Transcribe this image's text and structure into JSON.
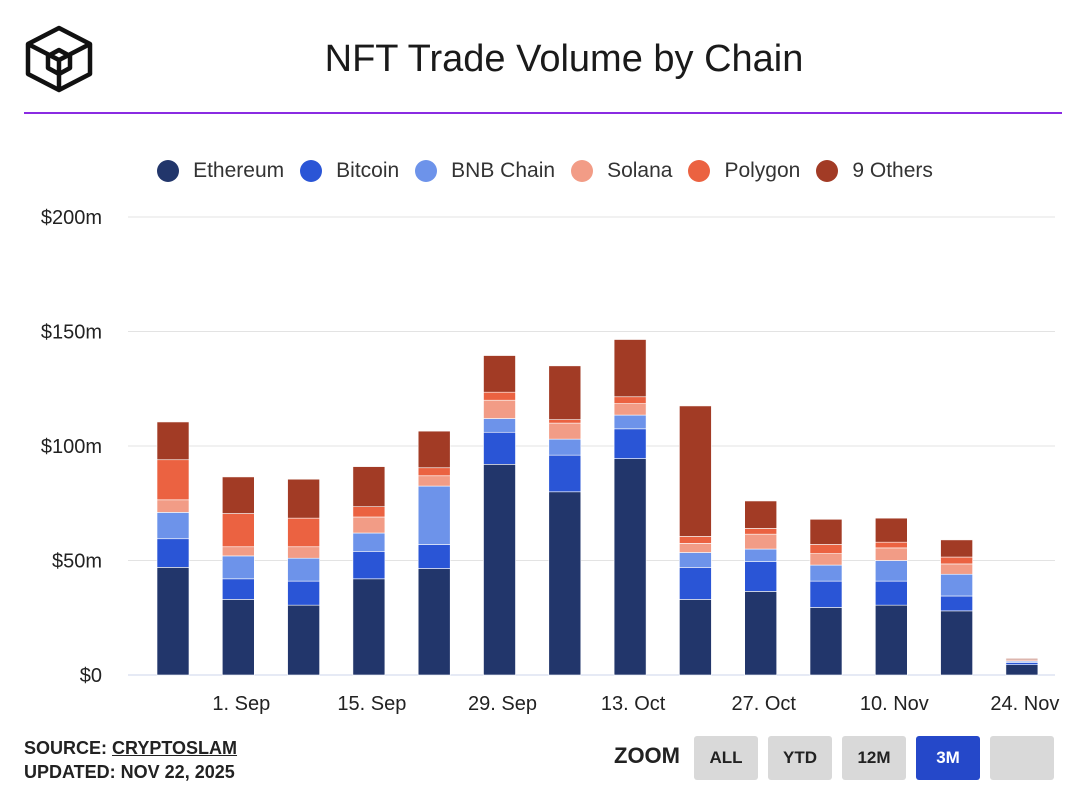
{
  "header": {
    "title": "NFT Trade Volume by Chain"
  },
  "chart_data": {
    "type": "bar",
    "stacked": true,
    "title": "NFT Trade Volume by Chain",
    "y_unit": "$m",
    "ylim": [
      0,
      200
    ],
    "y_ticks": [
      0,
      50,
      100,
      150,
      200
    ],
    "y_tick_labels": [
      "$0",
      "$50m",
      "$100m",
      "$150m",
      "$200m"
    ],
    "x_tick_labels": [
      "1. Sep",
      "15. Sep",
      "29. Sep",
      "13. Oct",
      "27. Oct",
      "10. Nov",
      "24. Nov"
    ],
    "categories": [
      "2025-08-25",
      "2025-09-01",
      "2025-09-08",
      "2025-09-15",
      "2025-09-22",
      "2025-09-29",
      "2025-10-06",
      "2025-10-13",
      "2025-10-20",
      "2025-10-27",
      "2025-11-03",
      "2025-11-10",
      "2025-11-17",
      "2025-11-24"
    ],
    "grid": true,
    "legend_position": "top",
    "series": [
      {
        "name": "Ethereum",
        "color": "#22366b",
        "values": [
          47,
          33,
          30.5,
          42,
          46.5,
          92,
          80,
          94.5,
          33,
          36.5,
          29.5,
          30.5,
          28,
          4.5
        ]
      },
      {
        "name": "Bitcoin",
        "color": "#2a55d6",
        "values": [
          12.5,
          9,
          10.5,
          12,
          10.5,
          14,
          16,
          13,
          14,
          13,
          11.5,
          10.5,
          6.5,
          1
        ]
      },
      {
        "name": "BNB Chain",
        "color": "#6d93ea",
        "values": [
          11.5,
          10,
          10,
          8,
          25.5,
          6,
          7,
          6,
          6.5,
          5.5,
          7,
          9,
          9.5,
          0.5
        ]
      },
      {
        "name": "Solana",
        "color": "#f29c86",
        "values": [
          5.5,
          4,
          5,
          7,
          4.5,
          8,
          7,
          5,
          4,
          6.5,
          5,
          5.5,
          4.5,
          0.3
        ]
      },
      {
        "name": "Polygon",
        "color": "#eb6241",
        "values": [
          17.5,
          14.5,
          12.5,
          4.5,
          3.5,
          3.5,
          1.5,
          3,
          3,
          2.5,
          4,
          2.5,
          3,
          0.4
        ]
      },
      {
        "name": "9 Others",
        "color": "#a23b25",
        "values": [
          16.5,
          16,
          17,
          17.5,
          16,
          16,
          23.5,
          25,
          57,
          12,
          11,
          10.5,
          7.5,
          0.5
        ]
      }
    ]
  },
  "footer": {
    "source_label": "SOURCE: ",
    "source_name": "CRYPTOSLAM",
    "updated": "UPDATED: NOV 22, 2025"
  },
  "zoom": {
    "label": "ZOOM",
    "buttons": [
      "ALL",
      "YTD",
      "12M",
      "3M",
      ""
    ],
    "active": "3M"
  }
}
